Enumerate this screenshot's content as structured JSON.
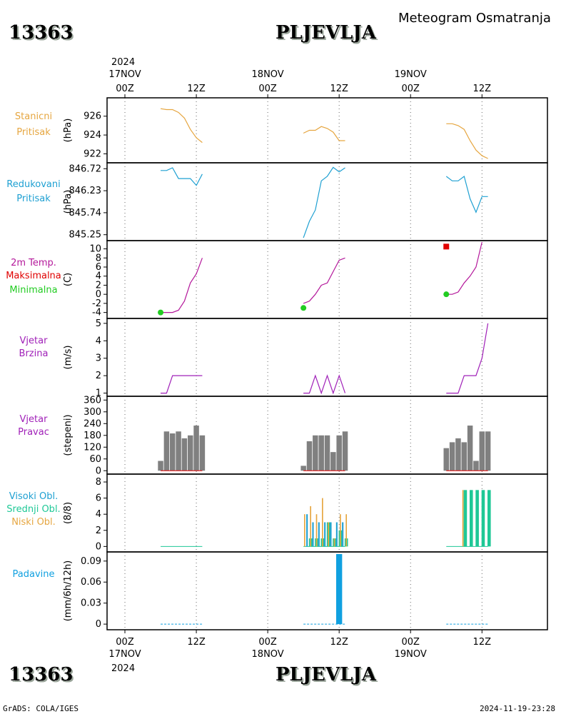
{
  "header": {
    "station_id": "13363",
    "station_name": "PLJEVLJA",
    "title": "Meteogram Osmatranja"
  },
  "footer": {
    "station_id": "13363",
    "station_name": "PLJEVLJA",
    "left": "GrADS: COLA/IGES",
    "right": "2024-11-19-23:28"
  },
  "colors": {
    "pressure": "#e6a640",
    "reduced": "#1ea0d2",
    "temp": "#b4189b",
    "tmax": "#e00000",
    "tmin": "#22cc22",
    "wind": "#a020b8",
    "winddir": "#808080",
    "cloud_low": "#e6a640",
    "cloud_high": "#1ec896",
    "cloud_small": "#aaaaaa",
    "precip": "#10a0e0",
    "grid": "#666666"
  },
  "time_axis": {
    "top_year": "2024",
    "bottom_year": "2024",
    "dates": [
      "17NOV",
      "18NOV",
      "19NOV"
    ],
    "hour_labels": [
      {
        "t": 0,
        "label": "00Z"
      },
      {
        "t": 12,
        "label": "12Z"
      },
      {
        "t": 24,
        "label": "00Z"
      },
      {
        "t": 36,
        "label": "12Z"
      },
      {
        "t": 48,
        "label": "00Z"
      },
      {
        "t": 60,
        "label": "12Z"
      }
    ],
    "tmin": -3,
    "tmax": 71
  },
  "chart_data": [
    {
      "type": "line",
      "panel": "pressure",
      "labels": [
        "Stanicni",
        "Pritisak"
      ],
      "ylabel": "(hPa)",
      "ylim": [
        921.2,
        927.8
      ],
      "yticks": [
        922,
        924,
        926
      ],
      "series": [
        {
          "name": "Stanicni Pritisak",
          "segments": [
            [
              [
                6,
                926.8
              ],
              [
                7,
                926.7
              ],
              [
                8,
                926.7
              ],
              [
                9,
                926.4
              ],
              [
                10,
                925.8
              ],
              [
                11,
                924.6
              ],
              [
                12,
                923.7
              ],
              [
                13,
                923.2
              ]
            ],
            [
              [
                30,
                924.2
              ],
              [
                31,
                924.5
              ],
              [
                32,
                924.5
              ],
              [
                33,
                924.9
              ],
              [
                34,
                924.7
              ],
              [
                35,
                924.3
              ],
              [
                36,
                923.4
              ],
              [
                37,
                923.4
              ]
            ],
            [
              [
                54,
                925.2
              ],
              [
                55,
                925.2
              ],
              [
                56,
                925.0
              ],
              [
                57,
                924.6
              ],
              [
                58,
                923.4
              ],
              [
                59,
                922.4
              ],
              [
                60,
                921.8
              ],
              [
                61,
                921.5
              ]
            ]
          ]
        }
      ]
    },
    {
      "type": "line",
      "panel": "reduced",
      "labels": [
        "Redukovani",
        "Pritisak"
      ],
      "ylabel": "(hPa)",
      "ylim": [
        845.15,
        846.82
      ],
      "yticks": [
        845.25,
        845.74,
        846.23,
        846.72
      ],
      "series": [
        {
          "name": "Redukovani Pritisak",
          "segments": [
            [
              [
                6,
                846.68
              ],
              [
                7,
                846.68
              ],
              [
                8,
                846.74
              ],
              [
                9,
                846.5
              ],
              [
                10,
                846.5
              ],
              [
                11,
                846.5
              ],
              [
                12,
                846.35
              ],
              [
                13,
                846.6
              ]
            ],
            [
              [
                30,
                845.18
              ],
              [
                31,
                845.55
              ],
              [
                32,
                845.8
              ],
              [
                33,
                846.45
              ],
              [
                34,
                846.55
              ],
              [
                35,
                846.75
              ],
              [
                36,
                846.65
              ],
              [
                37,
                846.74
              ]
            ],
            [
              [
                54,
                846.55
              ],
              [
                55,
                846.45
              ],
              [
                56,
                846.45
              ],
              [
                57,
                846.55
              ],
              [
                58,
                846.05
              ],
              [
                59,
                845.75
              ],
              [
                60,
                846.1
              ],
              [
                61,
                846.1
              ]
            ]
          ]
        }
      ]
    },
    {
      "type": "line",
      "panel": "temperature",
      "labels": [
        "2m Temp.",
        "Maksimalna",
        "Minimalna"
      ],
      "ylabel": "(C)",
      "ylim": [
        -5,
        11.5
      ],
      "yticks": [
        -4,
        -2,
        0,
        2,
        4,
        6,
        8,
        10
      ],
      "series": [
        {
          "name": "2m Temp.",
          "segments": [
            [
              [
                6,
                -4
              ],
              [
                7,
                -4
              ],
              [
                8,
                -4
              ],
              [
                9,
                -3.5
              ],
              [
                10,
                -1.5
              ],
              [
                11,
                2.5
              ],
              [
                12,
                4.5
              ],
              [
                13,
                8
              ]
            ],
            [
              [
                30,
                -2
              ],
              [
                31,
                -1.5
              ],
              [
                32,
                0
              ],
              [
                33,
                2
              ],
              [
                34,
                2.5
              ],
              [
                35,
                5
              ],
              [
                36,
                7.5
              ],
              [
                37,
                8
              ]
            ],
            [
              [
                54,
                0
              ],
              [
                55,
                0
              ],
              [
                56,
                0.5
              ],
              [
                57,
                2.5
              ],
              [
                58,
                4
              ],
              [
                59,
                6
              ],
              [
                60,
                11.5
              ]
            ]
          ]
        }
      ],
      "points_max": [
        [
          54,
          10.5
        ]
      ],
      "points_min": [
        [
          6,
          -4
        ],
        [
          30,
          -3
        ],
        [
          54,
          0
        ]
      ]
    },
    {
      "type": "line",
      "panel": "wind_speed",
      "labels": [
        "Vjetar",
        "Brzina"
      ],
      "ylabel": "(m/s)",
      "ylim": [
        0.9,
        5.2
      ],
      "yticks": [
        1,
        2,
        3,
        4,
        5
      ],
      "series": [
        {
          "name": "Vjetar Brzina",
          "segments": [
            [
              [
                6,
                1
              ],
              [
                7,
                1
              ],
              [
                8,
                2
              ],
              [
                9,
                2
              ],
              [
                10,
                2
              ],
              [
                11,
                2
              ],
              [
                12,
                2
              ],
              [
                13,
                2
              ]
            ],
            [
              [
                30,
                1
              ],
              [
                31,
                1
              ],
              [
                32,
                2
              ],
              [
                33,
                1
              ],
              [
                34,
                2
              ],
              [
                35,
                1
              ],
              [
                36,
                2
              ],
              [
                37,
                1
              ]
            ],
            [
              [
                54,
                1
              ],
              [
                55,
                1
              ],
              [
                56,
                1
              ],
              [
                57,
                2
              ],
              [
                58,
                2
              ],
              [
                59,
                2
              ],
              [
                60,
                3
              ],
              [
                61,
                5
              ]
            ]
          ]
        }
      ]
    },
    {
      "type": "bar",
      "panel": "wind_direction",
      "labels": [
        "Vjetar",
        "Pravac"
      ],
      "ylabel": "(stepeni)",
      "ylim": [
        -10,
        372
      ],
      "yticks": [
        0,
        60,
        120,
        180,
        240,
        300,
        360
      ],
      "x": [
        6,
        7,
        8,
        9,
        10,
        11,
        12,
        13,
        30,
        31,
        32,
        33,
        34,
        35,
        36,
        37,
        54,
        55,
        56,
        57,
        58,
        59,
        60,
        61
      ],
      "values": [
        50,
        200,
        190,
        200,
        165,
        180,
        230,
        180,
        25,
        150,
        180,
        180,
        180,
        95,
        180,
        200,
        115,
        145,
        165,
        145,
        230,
        50,
        200,
        200
      ]
    },
    {
      "type": "bar",
      "panel": "clouds",
      "labels": [
        "Visoki Obl.",
        "Srednji Obl.",
        "Niski Obl."
      ],
      "ylabel": "(8/8)",
      "ylim": [
        -0.5,
        8.8
      ],
      "yticks": [
        0,
        2,
        4,
        6,
        8
      ],
      "series": [
        {
          "name": "Visoki Obl.",
          "x": [
            31.2,
            32.2,
            33.2,
            34.2,
            35.2,
            36.2,
            37.2,
            57.2,
            58.2,
            59.2,
            60.2,
            61.2
          ],
          "values": [
            1,
            1,
            1,
            3,
            1,
            2,
            1,
            7,
            7,
            7,
            7,
            7
          ]
        },
        {
          "name": "Srednji Obl.",
          "x": [
            30.6,
            31.6,
            32.6,
            33.6,
            34.6,
            35.6,
            36.6
          ],
          "values": [
            4,
            3,
            3,
            3,
            3,
            3,
            3
          ]
        },
        {
          "name": "Niski Obl.",
          "x": [
            30.2,
            31.2,
            32.2,
            33.2,
            34.2,
            35.2,
            36.2,
            37.2,
            56.8
          ],
          "values": [
            4,
            5,
            4,
            6,
            3,
            1,
            4,
            4,
            7
          ]
        }
      ]
    },
    {
      "type": "bar",
      "panel": "precipitation",
      "labels": [
        "Padavine"
      ],
      "ylabel": "(mm/6h/12h)",
      "ylim": [
        -0.006,
        0.101
      ],
      "yticks": [
        "0",
        "0.03",
        "0.06",
        "0.09"
      ],
      "ytick_values": [
        0,
        0.03,
        0.06,
        0.09
      ],
      "x": [
        6,
        12,
        30,
        36,
        54,
        60
      ],
      "values": [
        0,
        0,
        0,
        0.1,
        0,
        0
      ]
    }
  ]
}
